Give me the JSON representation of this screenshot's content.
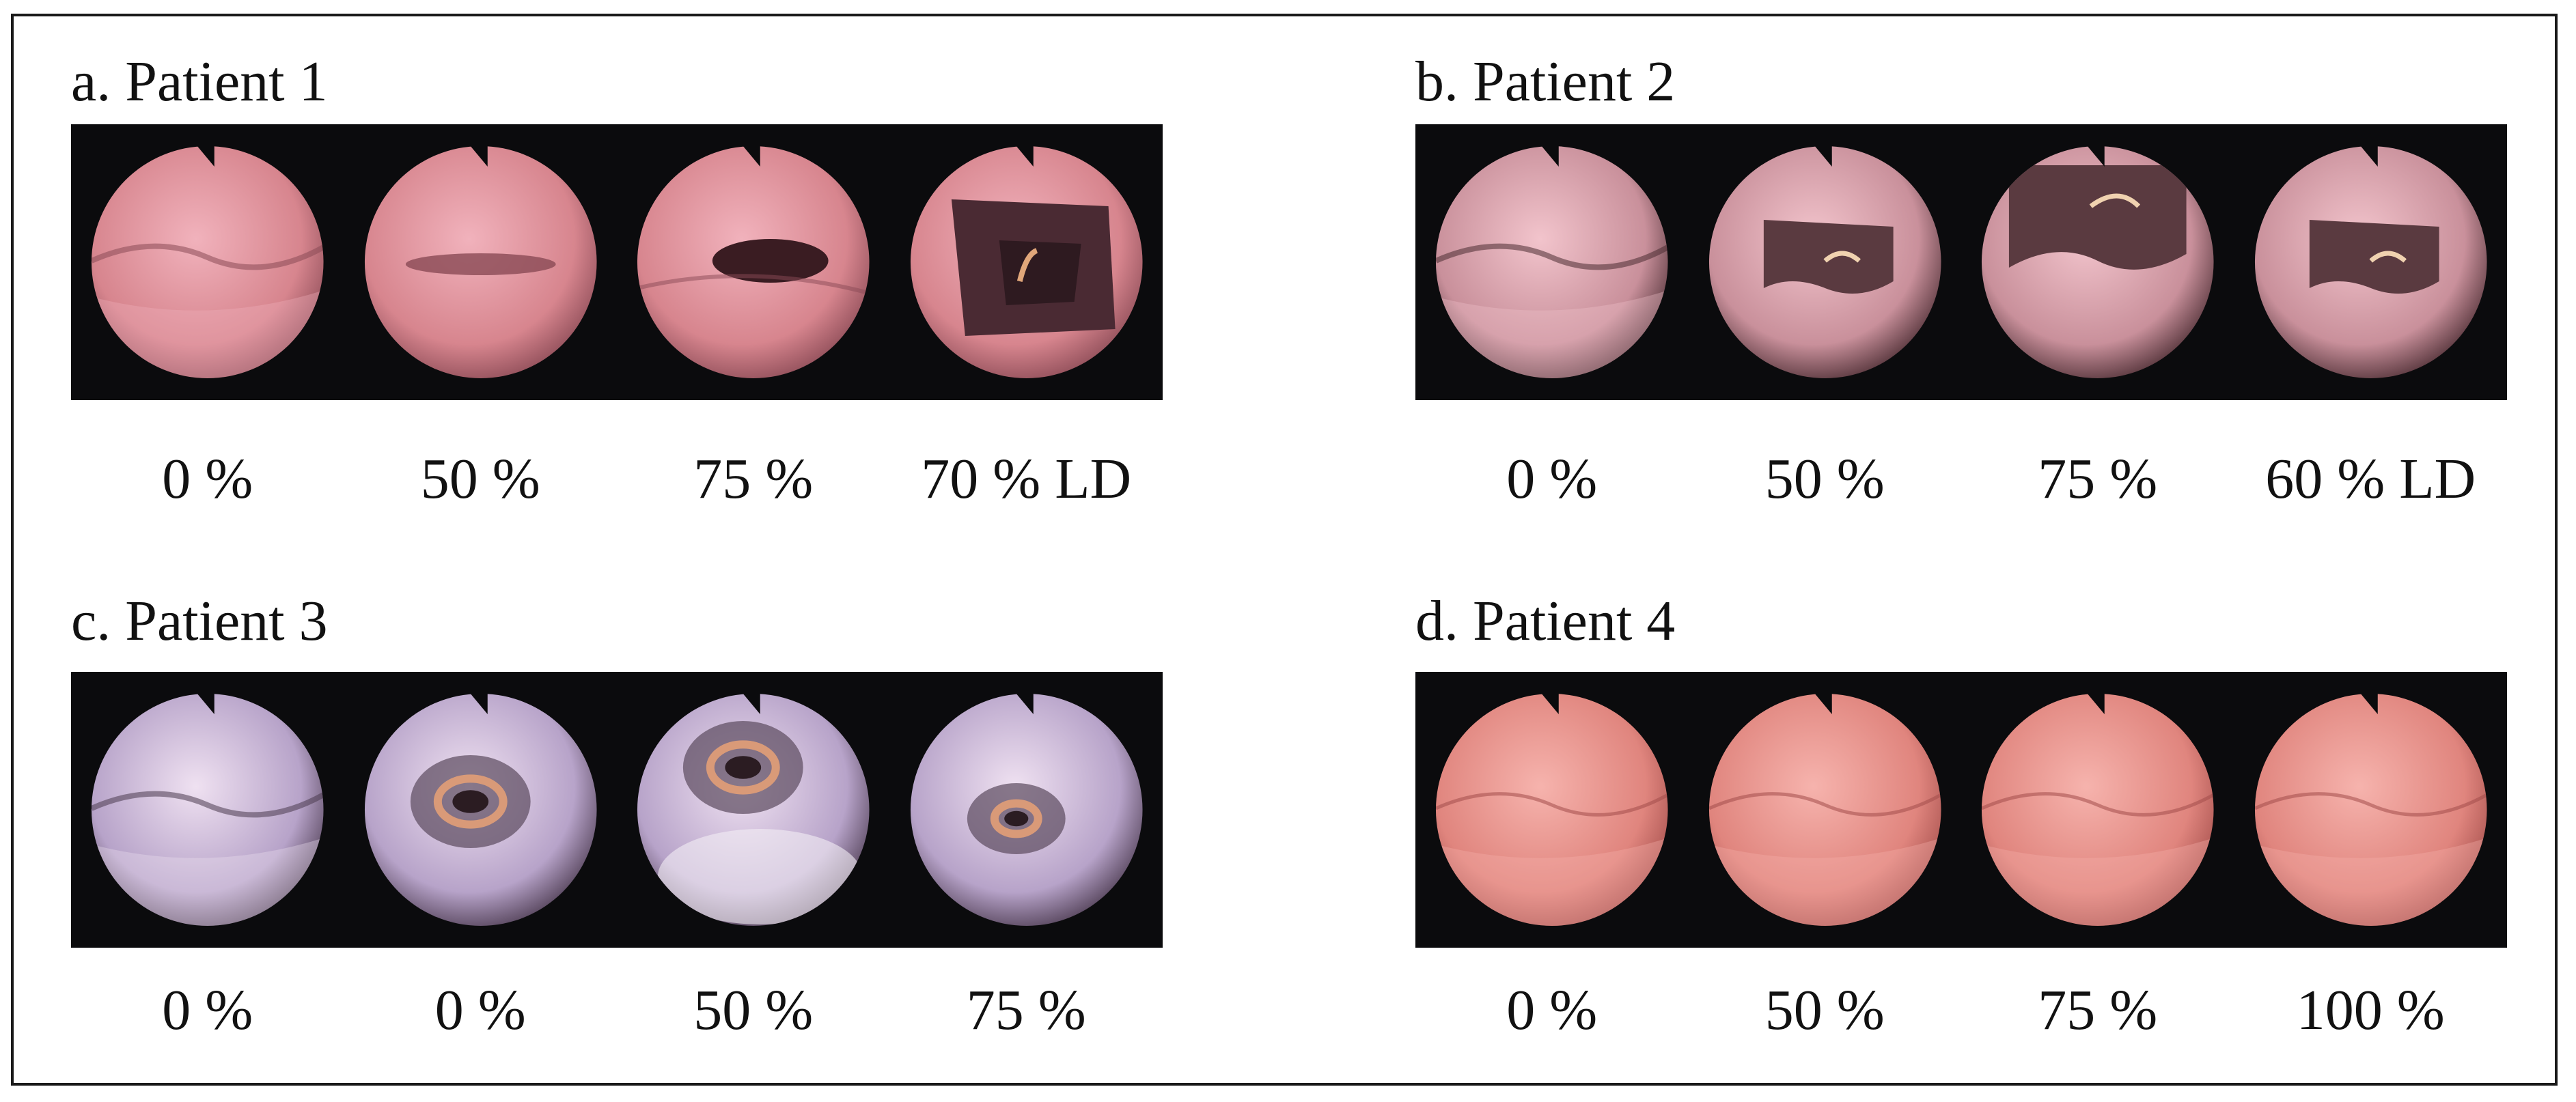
{
  "panels": [
    {
      "title": "a. Patient 1",
      "tone": "pink",
      "frames": [
        {
          "label": "0 %",
          "view": "closed-fold"
        },
        {
          "label": "50 %",
          "view": "narrow-slit"
        },
        {
          "label": "75 %",
          "view": "dark-slit"
        },
        {
          "label": "70 % LD",
          "view": "open-tube"
        }
      ]
    },
    {
      "title": "b. Patient 2",
      "tone": "mauve",
      "frames": [
        {
          "label": "0 %",
          "view": "closed-fold"
        },
        {
          "label": "50 %",
          "view": "half-open"
        },
        {
          "label": "75 %",
          "view": "half-open-large"
        },
        {
          "label": "60 % LD",
          "view": "half-open"
        }
      ]
    },
    {
      "title": "c. Patient 3",
      "tone": "violet",
      "frames": [
        {
          "label": "0 %",
          "view": "closed-fold"
        },
        {
          "label": "0 %",
          "view": "ring"
        },
        {
          "label": "50 %",
          "view": "ring-top"
        },
        {
          "label": "75 %",
          "view": "ring-small"
        }
      ]
    },
    {
      "title": "d. Patient 4",
      "tone": "salmon",
      "frames": [
        {
          "label": "0 %",
          "view": "faint-fold"
        },
        {
          "label": "50 %",
          "view": "faint-fold"
        },
        {
          "label": "75 %",
          "view": "faint-fold"
        },
        {
          "label": "100 %",
          "view": "faint-fold"
        }
      ]
    }
  ],
  "colors": {
    "pink": {
      "light": "#f1b2bc",
      "mid": "#d7858e",
      "dark": "#8a4a55"
    },
    "mauve": {
      "light": "#f2c4cc",
      "mid": "#c9909b",
      "dark": "#4a2c32"
    },
    "violet": {
      "light": "#efe1f1",
      "mid": "#b7a3c9",
      "dark": "#4b3a4f"
    },
    "salmon": {
      "light": "#f6b3ad",
      "mid": "#e0857e",
      "dark": "#a24d4a"
    }
  }
}
